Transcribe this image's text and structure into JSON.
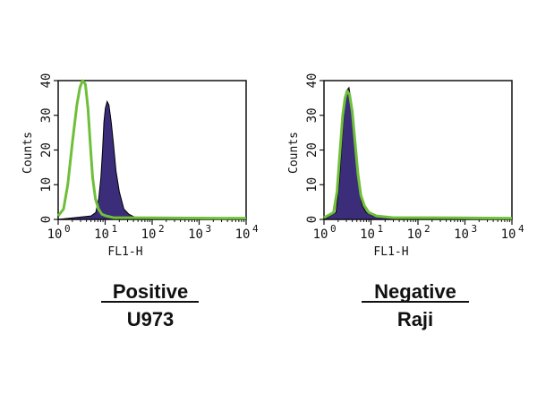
{
  "chart_data": [
    {
      "type": "histogram",
      "caption": "Positive",
      "sample": "U973",
      "xlabel": "FL1-H",
      "ylabel": "Counts",
      "x_scale": "log",
      "xlim": [
        1,
        10000
      ],
      "ylim": [
        0,
        40
      ],
      "y_ticks": [
        "0",
        "10",
        "20",
        "30",
        "40"
      ],
      "x_tick_values": [
        1,
        10,
        100,
        1000,
        10000
      ],
      "x_tick_base": "10",
      "x_tick_exponents": [
        "0",
        "1",
        "2",
        "3",
        "4"
      ],
      "series": [
        {
          "style": "filled",
          "color": "#3b2d7a",
          "points": [
            [
              1,
              0
            ],
            [
              5,
              1
            ],
            [
              6.3,
              2
            ],
            [
              7.3,
              6
            ],
            [
              8.1,
              12
            ],
            [
              8.8,
              20
            ],
            [
              9.4,
              28
            ],
            [
              10.1,
              32
            ],
            [
              11,
              34
            ],
            [
              12,
              33
            ],
            [
              13.5,
              28
            ],
            [
              15,
              22
            ],
            [
              17,
              14
            ],
            [
              20,
              8
            ],
            [
              25,
              3
            ],
            [
              32,
              1.5
            ],
            [
              45,
              0.5
            ],
            [
              70,
              0
            ],
            [
              10000,
              0
            ]
          ]
        },
        {
          "style": "outline",
          "color": "#6fbf3a",
          "points": [
            [
              1,
              1
            ],
            [
              1.3,
              3
            ],
            [
              1.6,
              10
            ],
            [
              2,
              22
            ],
            [
              2.5,
              33
            ],
            [
              2.9,
              38
            ],
            [
              3.3,
              40
            ],
            [
              3.8,
              39
            ],
            [
              4.3,
              32
            ],
            [
              4.8,
              22
            ],
            [
              5.4,
              12
            ],
            [
              6.2,
              6
            ],
            [
              7.2,
              3
            ],
            [
              8.5,
              1.5
            ],
            [
              10.5,
              1
            ],
            [
              15,
              0.5
            ],
            [
              40,
              0.5
            ],
            [
              10000,
              0.3
            ]
          ]
        }
      ]
    },
    {
      "type": "histogram",
      "caption": "Negative",
      "sample": "Raji",
      "xlabel": "FL1-H",
      "ylabel": "Counts",
      "x_scale": "log",
      "xlim": [
        1,
        10000
      ],
      "ylim": [
        0,
        40
      ],
      "y_ticks": [
        "0",
        "10",
        "20",
        "30",
        "40"
      ],
      "x_tick_values": [
        1,
        10,
        100,
        1000,
        10000
      ],
      "x_tick_base": "10",
      "x_tick_exponents": [
        "0",
        "1",
        "2",
        "3",
        "4"
      ],
      "series": [
        {
          "style": "filled",
          "color": "#3b2d7a",
          "points": [
            [
              1,
              0
            ],
            [
              1.8,
              2
            ],
            [
              2.1,
              10
            ],
            [
              2.4,
              22
            ],
            [
              2.7,
              32
            ],
            [
              3,
              37
            ],
            [
              3.4,
              38
            ],
            [
              3.8,
              34
            ],
            [
              4.3,
              26
            ],
            [
              4.9,
              16
            ],
            [
              5.6,
              9
            ],
            [
              6.5,
              4
            ],
            [
              8,
              2
            ],
            [
              11,
              1
            ],
            [
              20,
              0.5
            ],
            [
              60,
              0
            ],
            [
              10000,
              0
            ]
          ]
        },
        {
          "style": "outline",
          "color": "#6fbf3a",
          "points": [
            [
              1,
              0.5
            ],
            [
              1.6,
              2
            ],
            [
              1.9,
              8
            ],
            [
              2.2,
              20
            ],
            [
              2.5,
              30
            ],
            [
              2.8,
              35
            ],
            [
              3.1,
              37
            ],
            [
              3.5,
              36
            ],
            [
              4,
              31
            ],
            [
              4.6,
              22
            ],
            [
              5.3,
              13
            ],
            [
              6.1,
              7
            ],
            [
              7.2,
              4
            ],
            [
              9,
              2
            ],
            [
              13,
              1
            ],
            [
              30,
              0.5
            ],
            [
              200,
              0.5
            ],
            [
              10000,
              0.3
            ]
          ]
        }
      ]
    }
  ]
}
